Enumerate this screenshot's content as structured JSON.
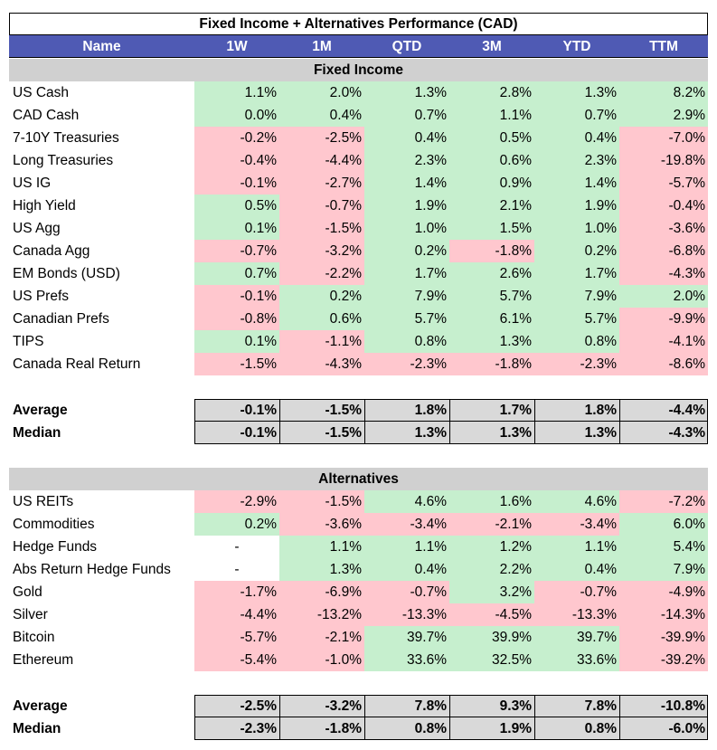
{
  "title": "Fixed Income + Alternatives Performance (CAD)",
  "columns": [
    "Name",
    "1W",
    "1M",
    "QTD",
    "3M",
    "YTD",
    "TTM"
  ],
  "sections": [
    {
      "label": "Fixed Income",
      "rows": [
        {
          "name": "US Cash",
          "values": [
            "1.1%",
            "2.0%",
            "1.3%",
            "2.8%",
            "1.3%",
            "8.2%"
          ],
          "status": [
            "pos",
            "pos",
            "pos",
            "pos",
            "pos",
            "pos"
          ]
        },
        {
          "name": "CAD Cash",
          "values": [
            "0.0%",
            "0.4%",
            "0.7%",
            "1.1%",
            "0.7%",
            "2.9%"
          ],
          "status": [
            "pos",
            "pos",
            "pos",
            "pos",
            "pos",
            "pos"
          ]
        },
        {
          "name": "7-10Y Treasuries",
          "values": [
            "-0.2%",
            "-2.5%",
            "0.4%",
            "0.5%",
            "0.4%",
            "-7.0%"
          ],
          "status": [
            "neg",
            "neg",
            "pos",
            "pos",
            "pos",
            "neg"
          ]
        },
        {
          "name": "Long Treasuries",
          "values": [
            "-0.4%",
            "-4.4%",
            "2.3%",
            "0.6%",
            "2.3%",
            "-19.8%"
          ],
          "status": [
            "neg",
            "neg",
            "pos",
            "pos",
            "pos",
            "neg"
          ]
        },
        {
          "name": "US IG",
          "values": [
            "-0.1%",
            "-2.7%",
            "1.4%",
            "0.9%",
            "1.4%",
            "-5.7%"
          ],
          "status": [
            "neg",
            "neg",
            "pos",
            "pos",
            "pos",
            "neg"
          ]
        },
        {
          "name": "High Yield",
          "values": [
            "0.5%",
            "-0.7%",
            "1.9%",
            "2.1%",
            "1.9%",
            "-0.4%"
          ],
          "status": [
            "pos",
            "neg",
            "pos",
            "pos",
            "pos",
            "neg"
          ]
        },
        {
          "name": "US Agg",
          "values": [
            "0.1%",
            "-1.5%",
            "1.0%",
            "1.5%",
            "1.0%",
            "-3.6%"
          ],
          "status": [
            "pos",
            "neg",
            "pos",
            "pos",
            "pos",
            "neg"
          ]
        },
        {
          "name": "Canada Agg",
          "values": [
            "-0.7%",
            "-3.2%",
            "0.2%",
            "-1.8%",
            "0.2%",
            "-6.8%"
          ],
          "status": [
            "neg",
            "neg",
            "pos",
            "neg",
            "pos",
            "neg"
          ]
        },
        {
          "name": "EM Bonds (USD)",
          "values": [
            "0.7%",
            "-2.2%",
            "1.7%",
            "2.6%",
            "1.7%",
            "-4.3%"
          ],
          "status": [
            "pos",
            "neg",
            "pos",
            "pos",
            "pos",
            "neg"
          ]
        },
        {
          "name": "US Prefs",
          "values": [
            "-0.1%",
            "0.2%",
            "7.9%",
            "5.7%",
            "7.9%",
            "2.0%"
          ],
          "status": [
            "neg",
            "pos",
            "pos",
            "pos",
            "pos",
            "pos"
          ]
        },
        {
          "name": "Canadian Prefs",
          "values": [
            "-0.8%",
            "0.6%",
            "5.7%",
            "6.1%",
            "5.7%",
            "-9.9%"
          ],
          "status": [
            "neg",
            "pos",
            "pos",
            "pos",
            "pos",
            "neg"
          ]
        },
        {
          "name": "TIPS",
          "values": [
            "0.1%",
            "-1.1%",
            "0.8%",
            "1.3%",
            "0.8%",
            "-4.1%"
          ],
          "status": [
            "pos",
            "neg",
            "pos",
            "pos",
            "pos",
            "neg"
          ]
        },
        {
          "name": "Canada Real Return",
          "values": [
            "-1.5%",
            "-4.3%",
            "-2.3%",
            "-1.8%",
            "-2.3%",
            "-8.6%"
          ],
          "status": [
            "neg",
            "neg",
            "neg",
            "neg",
            "neg",
            "neg"
          ]
        }
      ],
      "summary": [
        {
          "label": "Average",
          "values": [
            "-0.1%",
            "-1.5%",
            "1.8%",
            "1.7%",
            "1.8%",
            "-4.4%"
          ]
        },
        {
          "label": "Median",
          "values": [
            "-0.1%",
            "-1.5%",
            "1.3%",
            "1.3%",
            "1.3%",
            "-4.3%"
          ]
        }
      ]
    },
    {
      "label": "Alternatives",
      "rows": [
        {
          "name": "US REITs",
          "values": [
            "-2.9%",
            "-1.5%",
            "4.6%",
            "1.6%",
            "4.6%",
            "-7.2%"
          ],
          "status": [
            "neg",
            "neg",
            "pos",
            "pos",
            "pos",
            "neg"
          ]
        },
        {
          "name": "Commodities",
          "values": [
            "0.2%",
            "-3.6%",
            "-3.4%",
            "-2.1%",
            "-3.4%",
            "6.0%"
          ],
          "status": [
            "pos",
            "neg",
            "neg",
            "neg",
            "neg",
            "pos"
          ]
        },
        {
          "name": "Hedge Funds",
          "values": [
            "-",
            "1.1%",
            "1.1%",
            "1.2%",
            "1.1%",
            "5.4%"
          ],
          "status": [
            "none",
            "pos",
            "pos",
            "pos",
            "pos",
            "pos"
          ]
        },
        {
          "name": "Abs Return Hedge Funds",
          "values": [
            "-",
            "1.3%",
            "0.4%",
            "2.2%",
            "0.4%",
            "7.9%"
          ],
          "status": [
            "none",
            "pos",
            "pos",
            "pos",
            "pos",
            "pos"
          ]
        },
        {
          "name": "Gold",
          "values": [
            "-1.7%",
            "-6.9%",
            "-0.7%",
            "3.2%",
            "-0.7%",
            "-4.9%"
          ],
          "status": [
            "neg",
            "neg",
            "neg",
            "pos",
            "neg",
            "neg"
          ]
        },
        {
          "name": "Silver",
          "values": [
            "-4.4%",
            "-13.2%",
            "-13.3%",
            "-4.5%",
            "-13.3%",
            "-14.3%"
          ],
          "status": [
            "neg",
            "neg",
            "neg",
            "neg",
            "neg",
            "neg"
          ]
        },
        {
          "name": "Bitcoin",
          "values": [
            "-5.7%",
            "-2.1%",
            "39.7%",
            "39.9%",
            "39.7%",
            "-39.9%"
          ],
          "status": [
            "neg",
            "neg",
            "pos",
            "pos",
            "pos",
            "neg"
          ]
        },
        {
          "name": "Ethereum",
          "values": [
            "-5.4%",
            "-1.0%",
            "33.6%",
            "32.5%",
            "33.6%",
            "-39.2%"
          ],
          "status": [
            "neg",
            "neg",
            "pos",
            "pos",
            "pos",
            "neg"
          ]
        }
      ],
      "summary": [
        {
          "label": "Average",
          "values": [
            "-2.5%",
            "-3.2%",
            "7.8%",
            "9.3%",
            "7.8%",
            "-10.8%"
          ]
        },
        {
          "label": "Median",
          "values": [
            "-2.3%",
            "-1.8%",
            "0.8%",
            "1.9%",
            "0.8%",
            "-6.0%"
          ]
        }
      ]
    }
  ],
  "colors": {
    "header_bg": "#4f5ab4",
    "positive": "#c6efce",
    "negative": "#ffc7ce",
    "section_bg": "#d0d0d0",
    "summary_bg": "#d9d9d9"
  }
}
